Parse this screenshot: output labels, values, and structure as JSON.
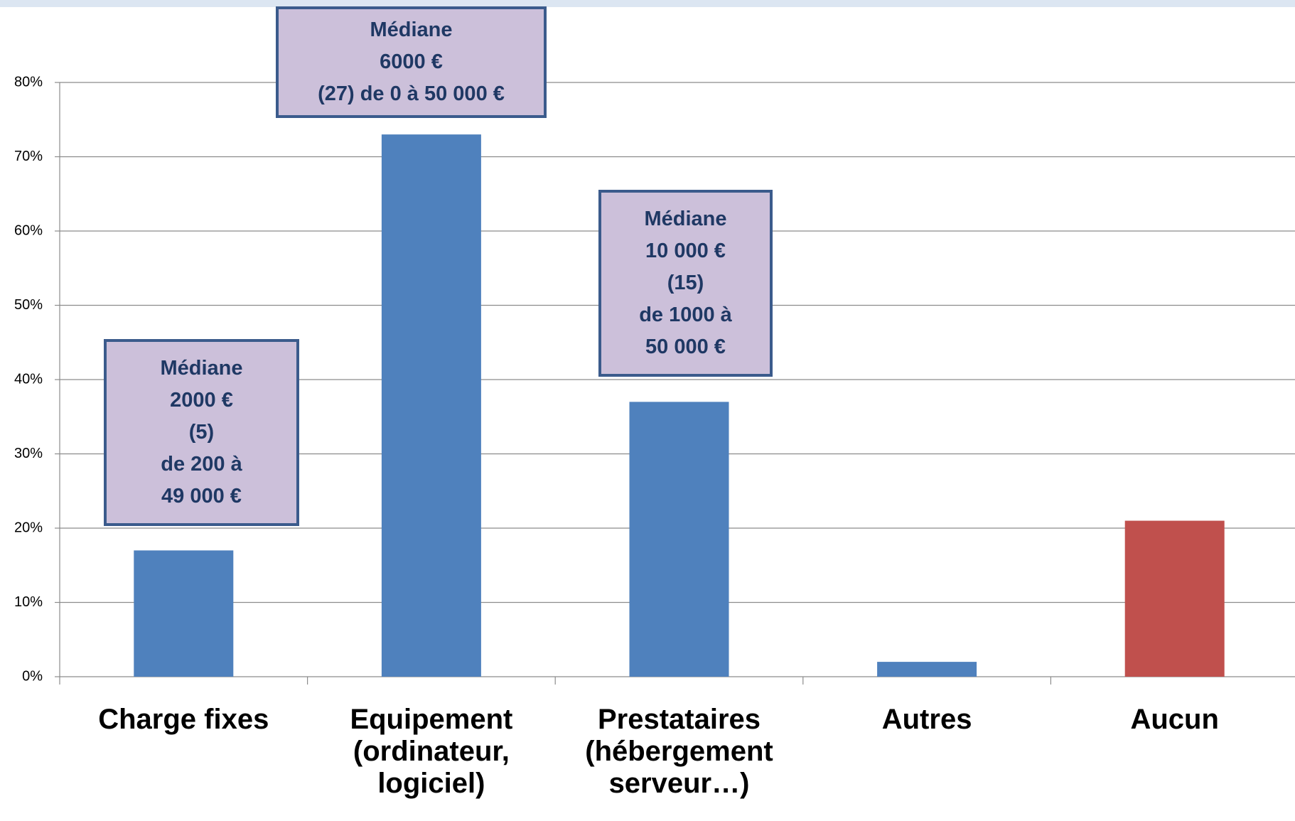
{
  "chart_data": {
    "type": "bar",
    "categories": [
      "Charge fixes",
      "Equipement (ordinateur, logiciel)",
      "Prestataires (hébergement serveur…)",
      "Autres",
      "Aucun"
    ],
    "values": [
      17,
      73,
      37,
      2,
      21
    ],
    "colors": [
      "#4f81bd",
      "#4f81bd",
      "#4f81bd",
      "#4f81bd",
      "#c0504d"
    ],
    "ylim": [
      0,
      80
    ],
    "yticks": [
      {
        "value": 0,
        "label": "0%"
      },
      {
        "value": 10,
        "label": "10%"
      },
      {
        "value": 20,
        "label": "20%"
      },
      {
        "value": 30,
        "label": "30%"
      },
      {
        "value": 40,
        "label": "40%"
      },
      {
        "value": 50,
        "label": "50%"
      },
      {
        "value": 60,
        "label": "60%"
      },
      {
        "value": 70,
        "label": "70%"
      },
      {
        "value": 80,
        "label": "80%"
      }
    ],
    "grid": true,
    "annotations": [
      {
        "lines": [
          "Médiane",
          "2000 €",
          "(5)",
          "de 200 à",
          "49 000 €"
        ]
      },
      {
        "lines": [
          "Médiane",
          "6000 €",
          "(27) de 0 à 50 000 €"
        ]
      },
      {
        "lines": [
          "Médiane",
          "10 000 €",
          "(15)",
          "de 1000 à",
          "50 000 €"
        ]
      }
    ]
  }
}
